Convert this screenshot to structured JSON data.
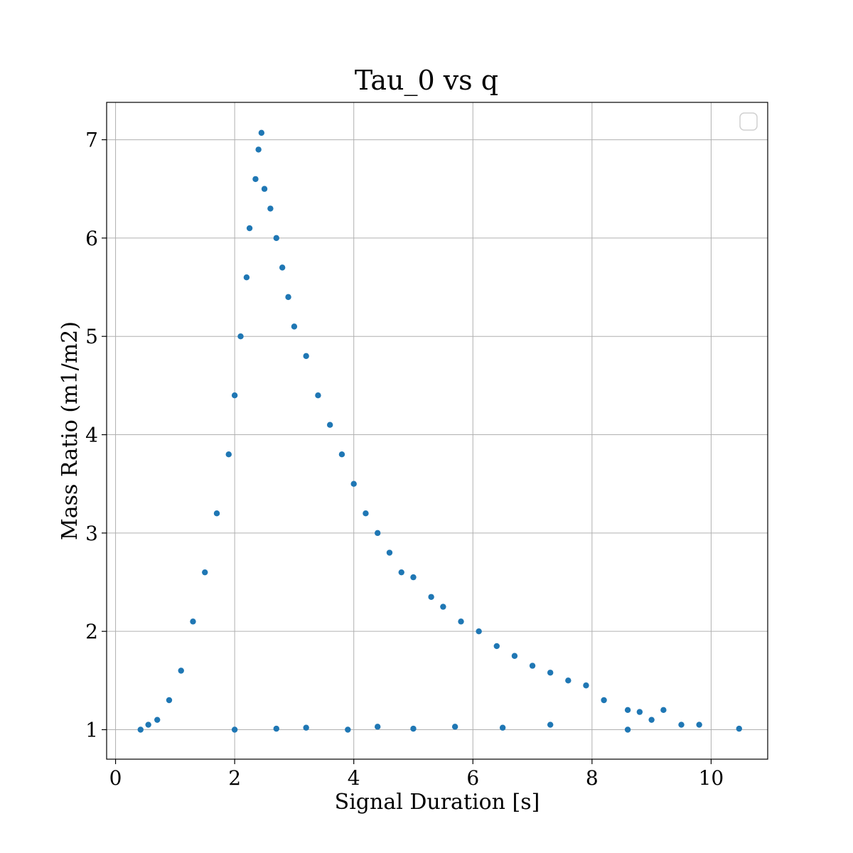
{
  "chart_data": {
    "type": "scatter",
    "title": "Tau_0 vs q",
    "xlabel": "Signal Duration [s]",
    "ylabel": "Mass Ratio (m1/m2)",
    "xlim": [
      -0.15,
      10.95
    ],
    "ylim": [
      0.7,
      7.38
    ],
    "xticks": [
      0,
      2,
      4,
      6,
      8,
      10
    ],
    "yticks": [
      1,
      2,
      3,
      4,
      5,
      6,
      7
    ],
    "grid": true,
    "legend": {
      "placement": "top-right",
      "entries": []
    },
    "series": [
      {
        "color": "#1f77b4",
        "marker": "circle",
        "points": [
          [
            0.42,
            1.0
          ],
          [
            0.55,
            1.05
          ],
          [
            0.7,
            1.1
          ],
          [
            0.9,
            1.3
          ],
          [
            1.1,
            1.6
          ],
          [
            1.3,
            2.1
          ],
          [
            1.5,
            2.6
          ],
          [
            1.7,
            3.2
          ],
          [
            1.9,
            3.8
          ],
          [
            2.0,
            4.4
          ],
          [
            2.1,
            5.0
          ],
          [
            2.2,
            5.6
          ],
          [
            2.25,
            6.1
          ],
          [
            2.35,
            6.6
          ],
          [
            2.45,
            7.07
          ],
          [
            2.4,
            6.9
          ],
          [
            2.5,
            6.5
          ],
          [
            2.6,
            6.3
          ],
          [
            2.7,
            6.0
          ],
          [
            2.8,
            5.7
          ],
          [
            2.9,
            5.4
          ],
          [
            3.0,
            5.1
          ],
          [
            3.2,
            4.8
          ],
          [
            3.4,
            4.4
          ],
          [
            3.6,
            4.1
          ],
          [
            3.8,
            3.8
          ],
          [
            4.0,
            3.5
          ],
          [
            4.2,
            3.2
          ],
          [
            4.4,
            3.0
          ],
          [
            4.6,
            2.8
          ],
          [
            4.8,
            2.6
          ],
          [
            5.0,
            2.55
          ],
          [
            5.3,
            2.35
          ],
          [
            5.5,
            2.25
          ],
          [
            5.8,
            2.1
          ],
          [
            6.1,
            2.0
          ],
          [
            6.4,
            1.85
          ],
          [
            6.7,
            1.75
          ],
          [
            7.0,
            1.65
          ],
          [
            7.3,
            1.58
          ],
          [
            7.6,
            1.5
          ],
          [
            7.9,
            1.45
          ],
          [
            8.2,
            1.3
          ],
          [
            8.6,
            1.2
          ],
          [
            8.8,
            1.18
          ],
          [
            9.0,
            1.1
          ],
          [
            9.2,
            1.2
          ],
          [
            9.5,
            1.05
          ],
          [
            9.8,
            1.05
          ],
          [
            10.47,
            1.01
          ],
          [
            8.6,
            1.0
          ],
          [
            7.3,
            1.05
          ],
          [
            6.5,
            1.02
          ],
          [
            5.7,
            1.03
          ],
          [
            5.0,
            1.01
          ],
          [
            4.4,
            1.03
          ],
          [
            3.9,
            1.0
          ],
          [
            3.2,
            1.02
          ],
          [
            2.7,
            1.01
          ],
          [
            2.0,
            1.0
          ]
        ]
      }
    ]
  }
}
